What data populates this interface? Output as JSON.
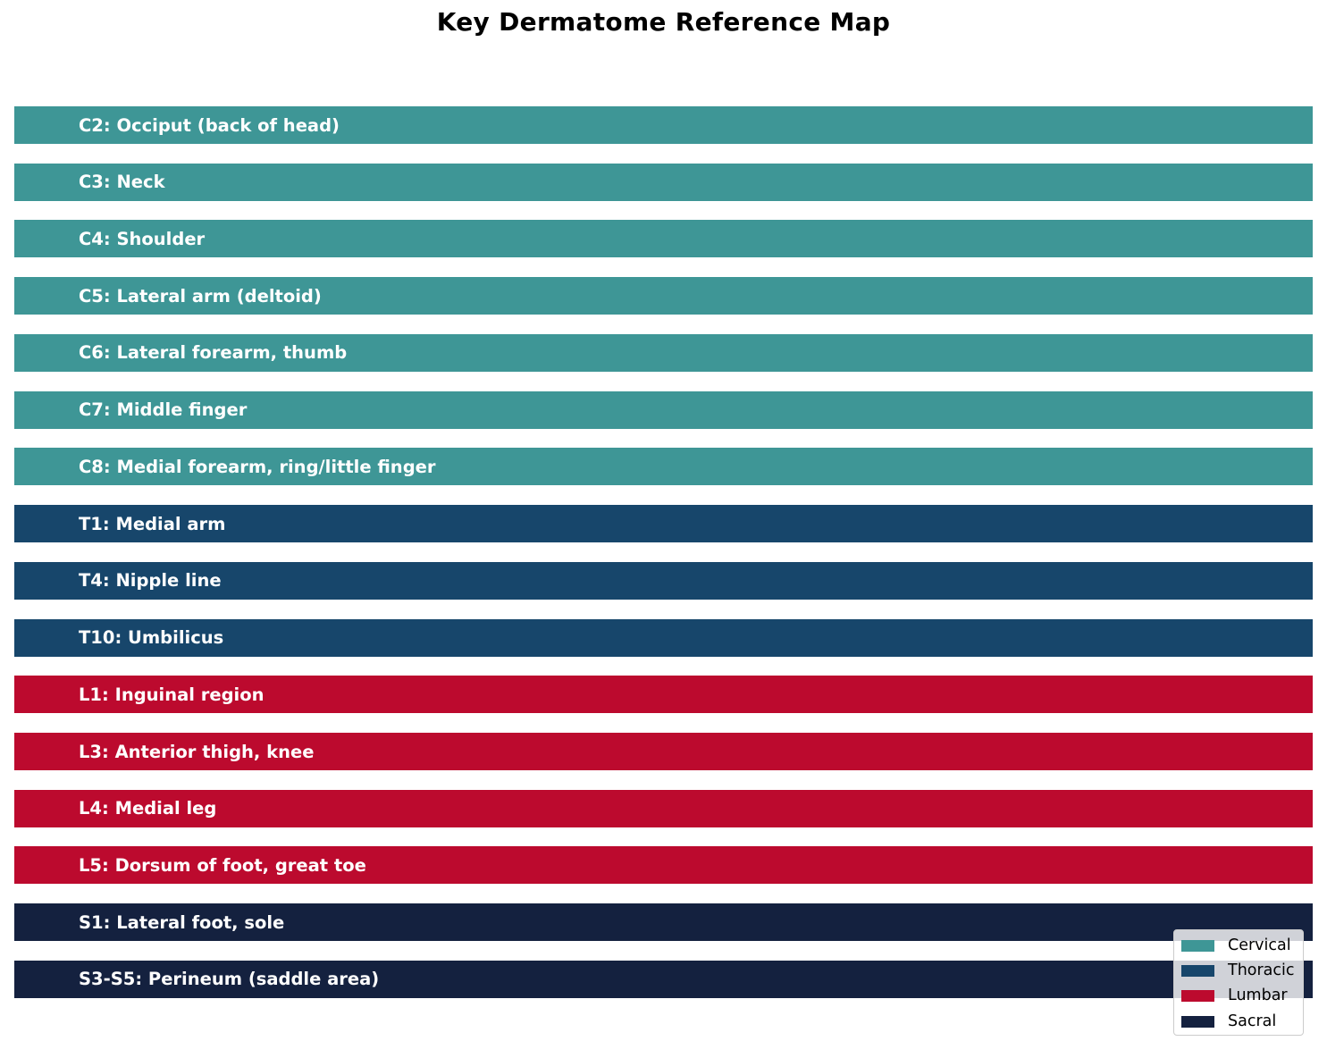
{
  "chart_data": {
    "type": "bar",
    "orientation": "horizontal",
    "title": "Key Dermatome Reference Map",
    "xlabel": "",
    "ylabel": "",
    "grid": false,
    "axes_visible": false,
    "legend_position": "lower right",
    "categories": [
      "C2: Occiput (back of head)",
      "C3: Neck",
      "C4: Shoulder",
      "C5: Lateral arm (deltoid)",
      "C6: Lateral forearm, thumb",
      "C7: Middle finger",
      "C8: Medial forearm, ring/little finger",
      "T1: Medial arm",
      "T4: Nipple line",
      "T10: Umbilicus",
      "L1: Inguinal region",
      "L3: Anterior thigh, knee",
      "L4: Medial leg",
      "L5: Dorsum of foot, great toe",
      "S1: Lateral foot, sole",
      "S3-S5: Perineum (saddle area)"
    ],
    "values": [
      1,
      1,
      1,
      1,
      1,
      1,
      1,
      1,
      1,
      1,
      1,
      1,
      1,
      1,
      1,
      1
    ],
    "groups": [
      "Cervical",
      "Cervical",
      "Cervical",
      "Cervical",
      "Cervical",
      "Cervical",
      "Cervical",
      "Thoracic",
      "Thoracic",
      "Thoracic",
      "Lumbar",
      "Lumbar",
      "Lumbar",
      "Lumbar",
      "Sacral",
      "Sacral"
    ],
    "legend": [
      {
        "label": "Cervical",
        "color": "#3E9696"
      },
      {
        "label": "Thoracic",
        "color": "#17466B"
      },
      {
        "label": "Lumbar",
        "color": "#BC0A2E"
      },
      {
        "label": "Sacral",
        "color": "#14213F"
      }
    ]
  },
  "title": "Key Dermatome Reference Map",
  "bars": [
    {
      "label": "C2: Occiput (back of head)",
      "color": "#3E9696"
    },
    {
      "label": "C3: Neck",
      "color": "#3E9696"
    },
    {
      "label": "C4: Shoulder",
      "color": "#3E9696"
    },
    {
      "label": "C5: Lateral arm (deltoid)",
      "color": "#3E9696"
    },
    {
      "label": "C6: Lateral forearm, thumb",
      "color": "#3E9696"
    },
    {
      "label": "C7: Middle finger",
      "color": "#3E9696"
    },
    {
      "label": "C8: Medial forearm, ring/little finger",
      "color": "#3E9696"
    },
    {
      "label": "T1: Medial arm",
      "color": "#17466B"
    },
    {
      "label": "T4: Nipple line",
      "color": "#17466B"
    },
    {
      "label": "T10: Umbilicus",
      "color": "#17466B"
    },
    {
      "label": "L1: Inguinal region",
      "color": "#BC0A2E"
    },
    {
      "label": "L3: Anterior thigh, knee",
      "color": "#BC0A2E"
    },
    {
      "label": "L4: Medial leg",
      "color": "#BC0A2E"
    },
    {
      "label": "L5: Dorsum of foot, great toe",
      "color": "#BC0A2E"
    },
    {
      "label": "S1: Lateral foot, sole",
      "color": "#14213F"
    },
    {
      "label": "S3-S5: Perineum (saddle area)",
      "color": "#14213F"
    }
  ],
  "legend": [
    {
      "label": "Cervical",
      "color": "#3E9696"
    },
    {
      "label": "Thoracic",
      "color": "#17466B"
    },
    {
      "label": "Lumbar",
      "color": "#BC0A2E"
    },
    {
      "label": "Sacral",
      "color": "#14213F"
    }
  ]
}
